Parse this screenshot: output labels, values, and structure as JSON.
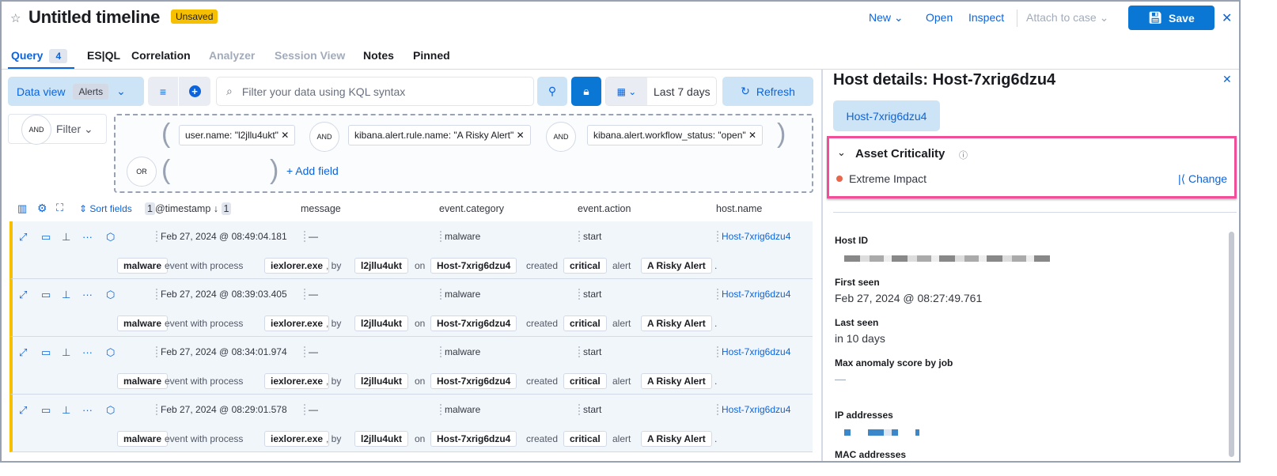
{
  "header": {
    "title": "Untitled timeline",
    "status_badge": "Unsaved",
    "actions": {
      "new": "New",
      "open": "Open",
      "inspect": "Inspect",
      "attach": "Attach to case",
      "save": "Save"
    }
  },
  "tabs": [
    {
      "label": "Query",
      "count": "4"
    },
    {
      "label": "ES|QL"
    },
    {
      "label": "Correlation"
    },
    {
      "label": "Analyzer",
      "disabled": true
    },
    {
      "label": "Session View",
      "disabled": true
    },
    {
      "label": "Notes"
    },
    {
      "label": "Pinned"
    }
  ],
  "query_bar": {
    "data_view_label": "Data view",
    "data_view_value": "Alerts",
    "search_placeholder": "Filter your data using KQL syntax",
    "date_range": "Last 7 days",
    "refresh": "Refresh"
  },
  "filters": {
    "and_label": "AND",
    "filter_label": "Filter",
    "or_label": "OR",
    "pills": [
      "user.name: \"l2jllu4ukt\"",
      "kibana.alert.rule.name: \"A Risky Alert\"",
      "kibana.alert.workflow_status: \"open\""
    ],
    "add_field": "+ Add field"
  },
  "table": {
    "sort_fields": "Sort fields",
    "sort_count": "1",
    "sort_count2": "1",
    "columns": [
      "@timestamp",
      "message",
      "event.category",
      "event.action",
      "host.name"
    ],
    "rows": [
      {
        "timestamp": "Feb 27, 2024 @ 08:49:04.181",
        "message": "—",
        "category": "malware",
        "action": "start",
        "host": "Host-7xrig6dzu4"
      },
      {
        "timestamp": "Feb 27, 2024 @ 08:39:03.405",
        "message": "—",
        "category": "malware",
        "action": "start",
        "host": "Host-7xrig6dzu4"
      },
      {
        "timestamp": "Feb 27, 2024 @ 08:34:01.974",
        "message": "—",
        "category": "malware",
        "action": "start",
        "host": "Host-7xrig6dzu4"
      },
      {
        "timestamp": "Feb 27, 2024 @ 08:29:01.578",
        "message": "—",
        "category": "malware",
        "action": "start",
        "host": "Host-7xrig6dzu4"
      }
    ],
    "summary": {
      "category": "malware",
      "t1": "event with process",
      "process": "iexlorer.exe",
      "t2": ", by",
      "user": "l2jllu4ukt",
      "t3": "on",
      "host": "Host-7xrig6dzu4",
      "t4": "created",
      "severity": "critical",
      "t5": "alert",
      "rule": "A Risky Alert",
      "t6": "."
    }
  },
  "host_panel": {
    "title": "Host details: Host-7xrig6dzu4",
    "host_button": "Host-7xrig6dzu4",
    "asset_criticality": {
      "title": "Asset Criticality",
      "level": "Extreme Impact",
      "level_color": "#e7664c",
      "change": "Change"
    },
    "fields": {
      "host_id": "Host ID",
      "first_seen": "First seen",
      "first_seen_value": "Feb 27, 2024 @ 08:27:49.761",
      "last_seen": "Last seen",
      "last_seen_value": "in 10 days",
      "max_anomaly": "Max anomaly score by job",
      "max_anomaly_value": "—",
      "ip": "IP addresses",
      "mac": "MAC addresses"
    }
  },
  "colors": {
    "accent": "#0b64dd",
    "highlight": "#f04e98",
    "unsaved": "#f6c000"
  }
}
